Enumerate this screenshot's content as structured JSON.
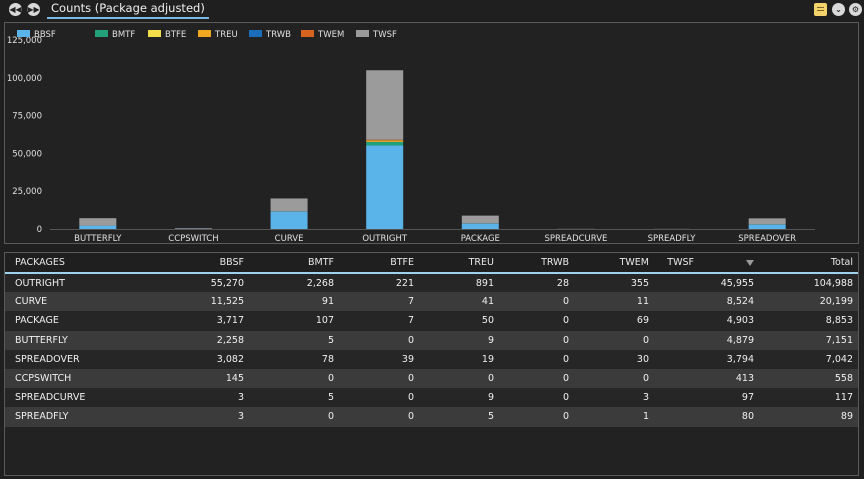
{
  "header": {
    "tab_title": "Counts (Package adjusted)"
  },
  "icons": {
    "prev": "rewind-icon",
    "next": "fast-forward-icon",
    "notes": "notes-icon",
    "collapse": "chevron-down-circle-icon",
    "settings": "gear-icon"
  },
  "colors": {
    "BBSF": "#5ab4ea",
    "BMTF": "#22a07a",
    "BTFE": "#f1de4a",
    "TREU": "#f0a820",
    "TRWB": "#1a6db8",
    "TWEM": "#d7641e",
    "TWSF": "#9b9b9b"
  },
  "chart_data": {
    "type": "bar",
    "stacked": true,
    "title": "",
    "xlabel": "",
    "ylabel": "",
    "ylim": [
      0,
      125000
    ],
    "yticks": [
      "0",
      "25,000",
      "50,000",
      "75,000",
      "100,000",
      "125,000"
    ],
    "ytick_values": [
      0,
      25000,
      50000,
      75000,
      100000,
      125000
    ],
    "legend_position": "top-left",
    "grid": false,
    "categories": [
      "BUTTERFLY",
      "CCPSWITCH",
      "CURVE",
      "OUTRIGHT",
      "PACKAGE",
      "SPREADCURVE",
      "SPREADFLY",
      "SPREADOVER"
    ],
    "series": [
      {
        "name": "BBSF",
        "values": [
          2258,
          145,
          11525,
          55270,
          3717,
          3,
          3,
          3082
        ]
      },
      {
        "name": "BMTF",
        "values": [
          5,
          0,
          91,
          2268,
          107,
          5,
          0,
          78
        ]
      },
      {
        "name": "BTFE",
        "values": [
          0,
          0,
          7,
          221,
          7,
          0,
          0,
          39
        ]
      },
      {
        "name": "TREU",
        "values": [
          9,
          0,
          41,
          891,
          50,
          9,
          5,
          19
        ]
      },
      {
        "name": "TRWB",
        "values": [
          0,
          0,
          0,
          28,
          0,
          0,
          0,
          0
        ]
      },
      {
        "name": "TWEM",
        "values": [
          0,
          0,
          11,
          355,
          69,
          3,
          1,
          30
        ]
      },
      {
        "name": "TWSF",
        "values": [
          4879,
          413,
          8524,
          45955,
          4903,
          97,
          80,
          3794
        ]
      }
    ]
  },
  "table": {
    "columns": [
      "PACKAGES",
      "BBSF",
      "BMTF",
      "BTFE",
      "TREU",
      "TRWB",
      "TWEM",
      "TWSF",
      "Total"
    ],
    "rows": [
      [
        "OUTRIGHT",
        "55,270",
        "2,268",
        "221",
        "891",
        "28",
        "355",
        "45,955",
        "104,988"
      ],
      [
        "CURVE",
        "11,525",
        "91",
        "7",
        "41",
        "0",
        "11",
        "8,524",
        "20,199"
      ],
      [
        "PACKAGE",
        "3,717",
        "107",
        "7",
        "50",
        "0",
        "69",
        "4,903",
        "8,853"
      ],
      [
        "BUTTERFLY",
        "2,258",
        "5",
        "0",
        "9",
        "0",
        "0",
        "4,879",
        "7,151"
      ],
      [
        "SPREADOVER",
        "3,082",
        "78",
        "39",
        "19",
        "0",
        "30",
        "3,794",
        "7,042"
      ],
      [
        "CCPSWITCH",
        "145",
        "0",
        "0",
        "0",
        "0",
        "0",
        "413",
        "558"
      ],
      [
        "SPREADCURVE",
        "3",
        "5",
        "0",
        "9",
        "0",
        "3",
        "97",
        "117"
      ],
      [
        "SPREADFLY",
        "3",
        "0",
        "0",
        "5",
        "0",
        "1",
        "80",
        "89"
      ]
    ]
  }
}
